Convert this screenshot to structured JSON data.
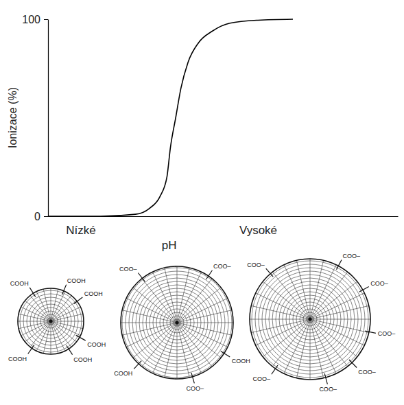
{
  "chart_data": {
    "type": "line",
    "y_label": "Ionizace (%)",
    "x_label": "pH",
    "x": [
      0,
      1.5,
      2.5,
      2.9,
      3.2,
      3.4,
      3.5,
      3.65,
      3.8,
      4,
      4.3,
      4.7,
      5.2,
      6,
      7
    ],
    "values": [
      0,
      0,
      1,
      4,
      10,
      20,
      35,
      50,
      65,
      78,
      88,
      94,
      98,
      99.5,
      100
    ],
    "color": "#000000",
    "xlim": [
      0,
      10
    ],
    "xticks": [
      {
        "value": 0.93,
        "label": "Nízké"
      },
      {
        "value": 6,
        "label": "Vysoké"
      }
    ],
    "ylim": [
      0,
      100
    ],
    "yticks": [
      0,
      100
    ],
    "grid": false
  },
  "diagram": {
    "particles": [
      {
        "groups": [
          "COOH",
          "COOH",
          "COOH",
          "COOH",
          "COOH",
          "COOH"
        ]
      },
      {
        "groups": [
          "COO–",
          "COO–",
          "COOH",
          "COO–",
          "COOH"
        ]
      },
      {
        "groups": [
          "COO–",
          "COO–",
          "COO–",
          "COO–",
          "COO–",
          "COO–",
          "COO–"
        ]
      }
    ]
  }
}
